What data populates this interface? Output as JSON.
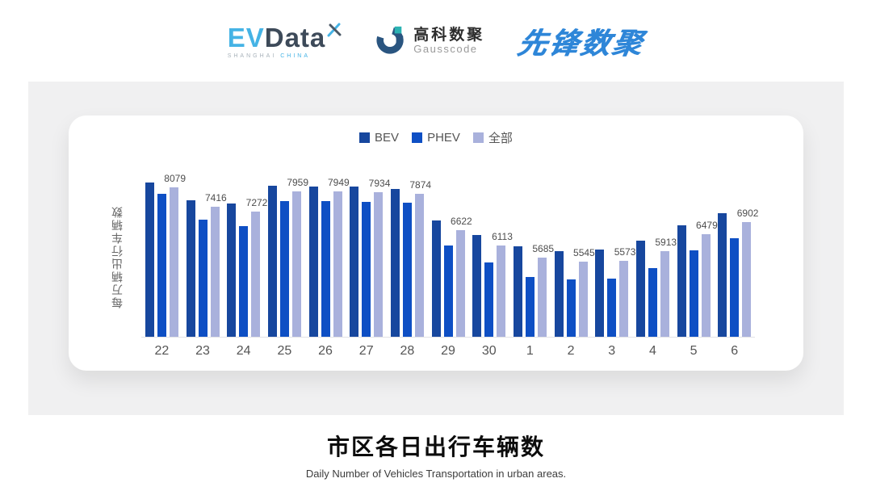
{
  "header": {
    "logos": {
      "evdata": {
        "ev": "EV",
        "data": "Data",
        "sub_left": "SHANGHAI",
        "sub_right": "CHINA"
      },
      "gausscode": {
        "cn": "高科数聚",
        "en": "Gausscode"
      },
      "xianfeng": {
        "text": "先锋数聚"
      }
    }
  },
  "chart_data": {
    "type": "bar",
    "title": "市区各日出行车辆数",
    "subtitle": "Daily Number of Vehicles Transportation in urban areas.",
    "ylabel": "每万辆出行车辆数",
    "xlabel": "",
    "categories": [
      "22",
      "23",
      "24",
      "25",
      "26",
      "27",
      "28",
      "29",
      "30",
      "1",
      "2",
      "3",
      "4",
      "5",
      "6"
    ],
    "series": [
      {
        "name": "BEV",
        "color": "#17479e",
        "values": [
          8240,
          7660,
          7550,
          8130,
          8120,
          8120,
          8040,
          6950,
          6470,
          6070,
          5910,
          5970,
          6260,
          6790,
          7210
        ],
        "show_labels": false
      },
      {
        "name": "PHEV",
        "color": "#0e4fc4",
        "values": [
          7860,
          7000,
          6780,
          7620,
          7610,
          7590,
          7570,
          6100,
          5530,
          5040,
          4960,
          4980,
          5350,
          5940,
          6360
        ],
        "show_labels": false
      },
      {
        "name": "全部",
        "color": "#a9b1dc",
        "values": [
          8079,
          7416,
          7272,
          7959,
          7949,
          7934,
          7874,
          6622,
          6113,
          5685,
          5545,
          5573,
          5913,
          6479,
          6902
        ],
        "show_labels": true
      }
    ],
    "ylim": [
      3000,
      8500
    ],
    "grid": false,
    "legend_position": "top"
  },
  "footer": {
    "title": "市区各日出行车辆数",
    "subtitle": "Daily Number of Vehicles Transportation in urban areas."
  },
  "colors": {
    "bev": "#17479e",
    "phev": "#0e4fc4",
    "all": "#a9b1dc",
    "panel_bg": "#f0f0f1",
    "axis_line": "#e2e2e6",
    "evdata_blue": "#45b3e5",
    "evdata_slate": "#3d4a59",
    "gauss_navy": "#2a5580",
    "gauss_teal": "#2bb3b3",
    "xianfeng_blue": "#2e86d8"
  }
}
